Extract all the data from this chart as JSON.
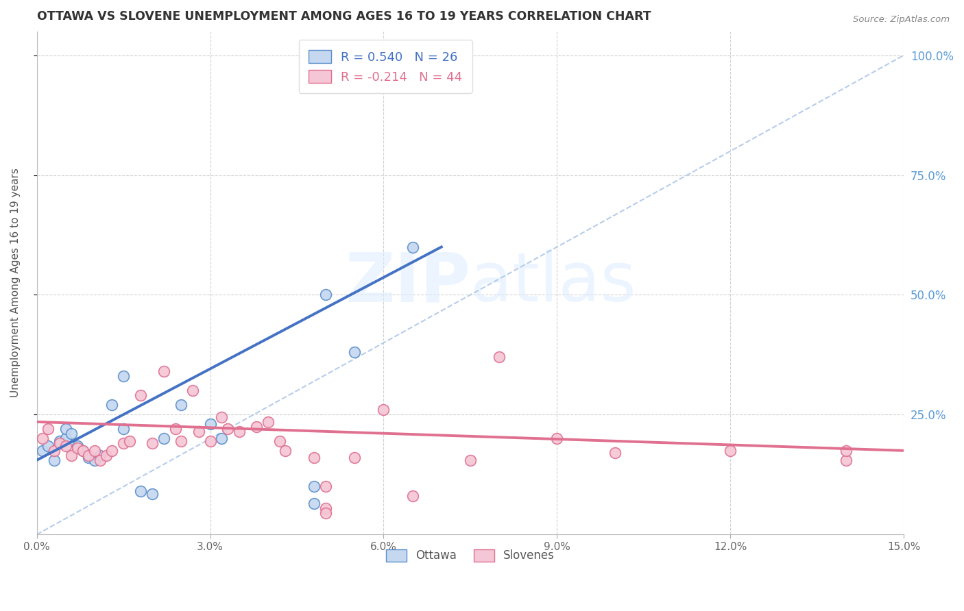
{
  "title": "OTTAWA VS SLOVENE UNEMPLOYMENT AMONG AGES 16 TO 19 YEARS CORRELATION CHART",
  "source": "Source: ZipAtlas.com",
  "ylabel": "Unemployment Among Ages 16 to 19 years",
  "xmin": 0.0,
  "xmax": 0.15,
  "ymin": 0.0,
  "ymax": 1.05,
  "ytick_positions": [
    0.25,
    0.5,
    0.75,
    1.0
  ],
  "ytick_labels": [
    "25.0%",
    "50.0%",
    "75.0%",
    "100.0%"
  ],
  "xtick_positions": [
    0.0,
    0.03,
    0.06,
    0.09,
    0.12,
    0.15
  ],
  "xtick_labels": [
    "0.0%",
    "3.0%",
    "6.0%",
    "9.0%",
    "12.0%",
    "15.0%"
  ],
  "ottawa_R": 0.54,
  "ottawa_N": 26,
  "slovene_R": -0.214,
  "slovene_N": 44,
  "ottawa_color": "#c5d8f0",
  "ottawa_edge_color": "#5b8fcc",
  "ottawa_line_color": "#4472c4",
  "slovene_color": "#f5c6d5",
  "slovene_edge_color": "#e07090",
  "slovene_line_color": "#e07090",
  "diagonal_color": "#aac4e8",
  "watermark_color": "#ddeeff",
  "background_color": "#ffffff",
  "ottawa_x": [
    0.001,
    0.002,
    0.003,
    0.004,
    0.005,
    0.005,
    0.006,
    0.007,
    0.008,
    0.009,
    0.01,
    0.011,
    0.013,
    0.015,
    0.015,
    0.018,
    0.02,
    0.022,
    0.025,
    0.03,
    0.032,
    0.05,
    0.055,
    0.065,
    0.048,
    0.048
  ],
  "ottawa_y": [
    0.175,
    0.185,
    0.155,
    0.195,
    0.2,
    0.22,
    0.21,
    0.185,
    0.175,
    0.16,
    0.155,
    0.165,
    0.27,
    0.33,
    0.22,
    0.09,
    0.085,
    0.2,
    0.27,
    0.23,
    0.2,
    0.5,
    0.38,
    0.6,
    0.1,
    0.065
  ],
  "slovene_x": [
    0.001,
    0.002,
    0.003,
    0.004,
    0.005,
    0.006,
    0.007,
    0.008,
    0.009,
    0.01,
    0.011,
    0.012,
    0.013,
    0.015,
    0.016,
    0.018,
    0.02,
    0.022,
    0.024,
    0.025,
    0.027,
    0.028,
    0.03,
    0.032,
    0.033,
    0.035,
    0.038,
    0.04,
    0.042,
    0.043,
    0.048,
    0.05,
    0.055,
    0.06,
    0.05,
    0.05,
    0.065,
    0.075,
    0.08,
    0.09,
    0.1,
    0.12,
    0.14,
    0.14
  ],
  "slovene_y": [
    0.2,
    0.22,
    0.175,
    0.19,
    0.185,
    0.165,
    0.18,
    0.175,
    0.165,
    0.175,
    0.155,
    0.165,
    0.175,
    0.19,
    0.195,
    0.29,
    0.19,
    0.34,
    0.22,
    0.195,
    0.3,
    0.215,
    0.195,
    0.245,
    0.22,
    0.215,
    0.225,
    0.235,
    0.195,
    0.175,
    0.16,
    0.055,
    0.16,
    0.26,
    0.1,
    0.045,
    0.08,
    0.155,
    0.37,
    0.2,
    0.17,
    0.175,
    0.155,
    0.175
  ],
  "ottawa_trend_x0": 0.0,
  "ottawa_trend_y0": 0.155,
  "ottawa_trend_x1": 0.07,
  "ottawa_trend_y1": 0.6,
  "slovene_trend_x0": 0.0,
  "slovene_trend_y0": 0.235,
  "slovene_trend_x1": 0.15,
  "slovene_trend_y1": 0.175
}
